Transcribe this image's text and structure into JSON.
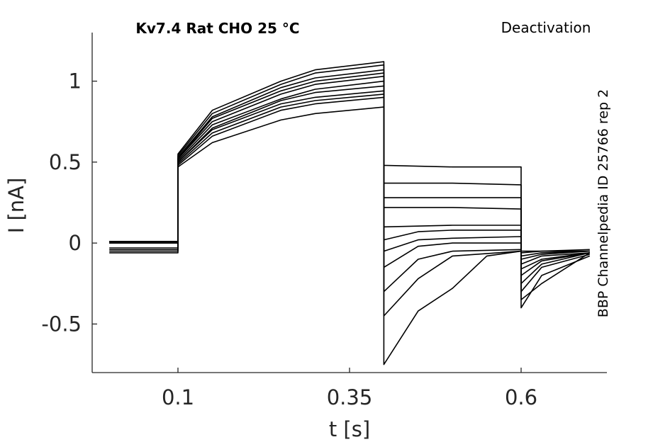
{
  "chart_data": {
    "type": "line",
    "title": "Kv7.4  Rat  CHO  25 °C",
    "protocol": "Deactivation",
    "source": "BBP Channelpedia ID 25766 rep 2",
    "xlabel": "t [s]",
    "ylabel": "I [nA]",
    "xlim": [
      -0.025,
      0.725
    ],
    "ylim": [
      -0.8,
      1.3
    ],
    "xticks": [
      0.1,
      0.35,
      0.6
    ],
    "xtick_labels": [
      "0.1",
      "0.35",
      "0.6"
    ],
    "yticks": [
      -0.5,
      0,
      0.5,
      1
    ],
    "ytick_labels": [
      "-0.5",
      "0",
      "0.5",
      "1"
    ],
    "grid": false,
    "line_color": "#000000",
    "axis_color": "#262626",
    "series": [
      {
        "x": [
          0.0,
          0.1,
          0.1,
          0.15,
          0.25,
          0.3,
          0.4,
          0.4,
          0.5,
          0.6,
          0.6,
          0.63,
          0.7
        ],
        "y": [
          0.01,
          0.01,
          0.47,
          0.62,
          0.76,
          0.8,
          0.84,
          0.48,
          0.47,
          0.47,
          -0.05,
          -0.05,
          -0.04
        ]
      },
      {
        "x": [
          0.0,
          0.1,
          0.1,
          0.15,
          0.25,
          0.3,
          0.4,
          0.4,
          0.5,
          0.6,
          0.6,
          0.63,
          0.7
        ],
        "y": [
          0.0,
          0.0,
          0.48,
          0.66,
          0.82,
          0.86,
          0.9,
          0.37,
          0.37,
          0.36,
          -0.06,
          -0.05,
          -0.05
        ]
      },
      {
        "x": [
          0.0,
          0.1,
          0.1,
          0.15,
          0.25,
          0.3,
          0.4,
          0.4,
          0.5,
          0.6,
          0.6,
          0.63,
          0.7
        ],
        "y": [
          -0.03,
          -0.03,
          0.49,
          0.68,
          0.84,
          0.88,
          0.92,
          0.28,
          0.28,
          0.28,
          -0.08,
          -0.06,
          -0.05
        ]
      },
      {
        "x": [
          0.0,
          0.1,
          0.1,
          0.15,
          0.25,
          0.3,
          0.4,
          0.4,
          0.5,
          0.6,
          0.6,
          0.63,
          0.7
        ],
        "y": [
          0.01,
          0.01,
          0.5,
          0.7,
          0.86,
          0.9,
          0.94,
          0.22,
          0.22,
          0.21,
          -0.1,
          -0.07,
          -0.05
        ]
      },
      {
        "x": [
          0.0,
          0.1,
          0.1,
          0.15,
          0.25,
          0.3,
          0.4,
          0.4,
          0.5,
          0.6,
          0.6,
          0.63,
          0.7
        ],
        "y": [
          0.0,
          0.0,
          0.5,
          0.71,
          0.88,
          0.93,
          0.97,
          0.1,
          0.11,
          0.11,
          -0.13,
          -0.08,
          -0.06
        ]
      },
      {
        "x": [
          0.0,
          0.1,
          0.1,
          0.15,
          0.25,
          0.3,
          0.4,
          0.4,
          0.45,
          0.5,
          0.6,
          0.6,
          0.63,
          0.7
        ],
        "y": [
          -0.04,
          -0.04,
          0.51,
          0.73,
          0.89,
          0.95,
          1.0,
          0.02,
          0.07,
          0.08,
          0.08,
          -0.16,
          -0.1,
          -0.06
        ]
      },
      {
        "x": [
          0.0,
          0.1,
          0.1,
          0.15,
          0.25,
          0.3,
          0.4,
          0.4,
          0.45,
          0.5,
          0.6,
          0.6,
          0.63,
          0.7
        ],
        "y": [
          0.01,
          0.01,
          0.52,
          0.75,
          0.92,
          0.98,
          1.03,
          -0.05,
          0.02,
          0.03,
          0.04,
          -0.2,
          -0.11,
          -0.06
        ]
      },
      {
        "x": [
          0.0,
          0.1,
          0.1,
          0.15,
          0.25,
          0.3,
          0.4,
          0.4,
          0.45,
          0.5,
          0.6,
          0.6,
          0.63,
          0.7
        ],
        "y": [
          -0.05,
          -0.05,
          0.52,
          0.77,
          0.94,
          1.0,
          1.05,
          -0.15,
          -0.02,
          0.0,
          0.0,
          -0.25,
          -0.13,
          -0.06
        ]
      },
      {
        "x": [
          0.0,
          0.1,
          0.1,
          0.15,
          0.25,
          0.3,
          0.4,
          0.4,
          0.45,
          0.5,
          0.6,
          0.6,
          0.63,
          0.7
        ],
        "y": [
          0.0,
          0.0,
          0.53,
          0.78,
          0.96,
          1.02,
          1.07,
          -0.3,
          -0.1,
          -0.05,
          -0.04,
          -0.3,
          -0.15,
          -0.07
        ]
      },
      {
        "x": [
          0.0,
          0.1,
          0.1,
          0.15,
          0.25,
          0.3,
          0.4,
          0.4,
          0.45,
          0.5,
          0.6,
          0.6,
          0.63,
          0.7
        ],
        "y": [
          -0.06,
          -0.06,
          0.54,
          0.8,
          0.98,
          1.05,
          1.1,
          -0.45,
          -0.22,
          -0.08,
          -0.05,
          -0.4,
          -0.2,
          -0.08
        ]
      },
      {
        "x": [
          0.0,
          0.1,
          0.1,
          0.15,
          0.25,
          0.3,
          0.4,
          0.4,
          0.45,
          0.5,
          0.55,
          0.6,
          0.6,
          0.63,
          0.7
        ],
        "y": [
          0.01,
          0.01,
          0.55,
          0.82,
          1.0,
          1.07,
          1.12,
          -0.75,
          -0.42,
          -0.28,
          -0.08,
          -0.05,
          -0.35,
          -0.25,
          -0.06
        ]
      }
    ]
  }
}
